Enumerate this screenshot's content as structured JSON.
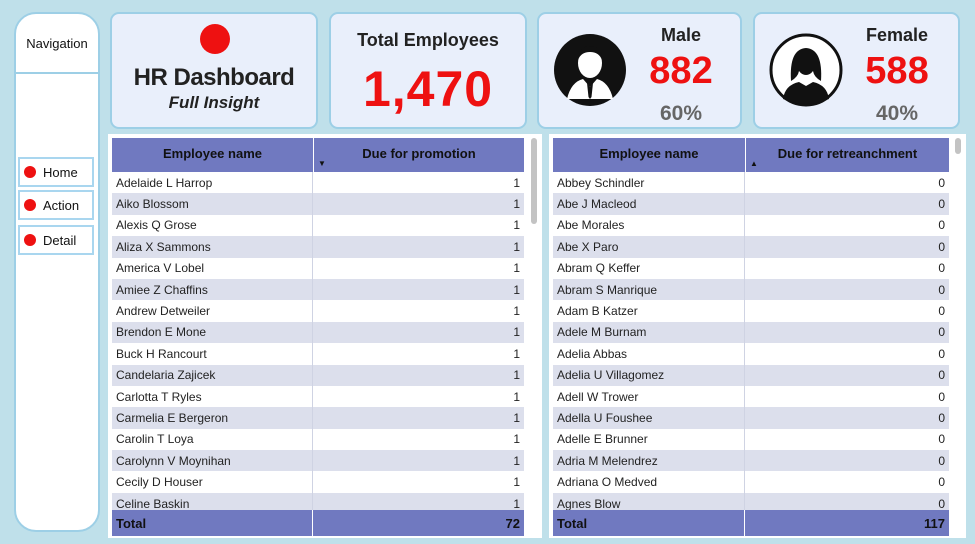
{
  "navigation": {
    "title": "Navigation",
    "items": [
      {
        "label": "Home"
      },
      {
        "label": "Action"
      },
      {
        "label": "Detail"
      }
    ]
  },
  "header": {
    "title": "HR Dashboard",
    "subtitle": "Full Insight"
  },
  "kpis": {
    "total_label": "Total Employees",
    "total_value": "1,470",
    "male": {
      "label": "Male",
      "value": "882",
      "percent": "60%",
      "icon": "male-avatar-icon"
    },
    "female": {
      "label": "Female",
      "value": "588",
      "percent": "40%",
      "icon": "female-avatar-icon"
    }
  },
  "colors": {
    "accent_red": "#ee1111",
    "header_blue": "#7079c0",
    "row_stripe": "#dcdfec",
    "card_bg": "#e9effb",
    "page_bg": "#bfe0ea"
  },
  "promotion_table": {
    "columns": [
      "Employee name",
      "Due for promotion"
    ],
    "sort_icon": "sort-descending-icon",
    "rows": [
      {
        "name": "Adelaide L Harrop",
        "value": "1"
      },
      {
        "name": "Aiko Blossom",
        "value": "1"
      },
      {
        "name": "Alexis Q Grose",
        "value": "1"
      },
      {
        "name": "Aliza X Sammons",
        "value": "1"
      },
      {
        "name": "America V Lobel",
        "value": "1"
      },
      {
        "name": "Amiee Z Chaffins",
        "value": "1"
      },
      {
        "name": "Andrew Detweiler",
        "value": "1"
      },
      {
        "name": "Brendon E Mone",
        "value": "1"
      },
      {
        "name": "Buck H Rancourt",
        "value": "1"
      },
      {
        "name": "Candelaria Zajicek",
        "value": "1"
      },
      {
        "name": "Carlotta T Ryles",
        "value": "1"
      },
      {
        "name": "Carmelia E Bergeron",
        "value": "1"
      },
      {
        "name": "Carolin T Loya",
        "value": "1"
      },
      {
        "name": "Carolynn V Moynihan",
        "value": "1"
      },
      {
        "name": "Cecily D Houser",
        "value": "1"
      },
      {
        "name": "Celine Baskin",
        "value": "1"
      }
    ],
    "total_label": "Total",
    "total_value": "72"
  },
  "retrenchment_table": {
    "columns": [
      "Employee name",
      "Due for retreanchment"
    ],
    "sort_icon": "sort-ascending-icon",
    "rows": [
      {
        "name": "Abbey Schindler",
        "value": "0"
      },
      {
        "name": "Abe J Macleod",
        "value": "0"
      },
      {
        "name": "Abe Morales",
        "value": "0"
      },
      {
        "name": "Abe X Paro",
        "value": "0"
      },
      {
        "name": "Abram Q Keffer",
        "value": "0"
      },
      {
        "name": "Abram S Manrique",
        "value": "0"
      },
      {
        "name": "Adam B Katzer",
        "value": "0"
      },
      {
        "name": "Adele M Burnam",
        "value": "0"
      },
      {
        "name": "Adelia Abbas",
        "value": "0"
      },
      {
        "name": "Adelia U Villagomez",
        "value": "0"
      },
      {
        "name": "Adell W Trower",
        "value": "0"
      },
      {
        "name": "Adella U Foushee",
        "value": "0"
      },
      {
        "name": "Adelle E Brunner",
        "value": "0"
      },
      {
        "name": "Adria M Melendrez",
        "value": "0"
      },
      {
        "name": "Adriana O Medved",
        "value": "0"
      },
      {
        "name": "Agnes Blow",
        "value": "0"
      }
    ],
    "total_label": "Total",
    "total_value": "117"
  }
}
